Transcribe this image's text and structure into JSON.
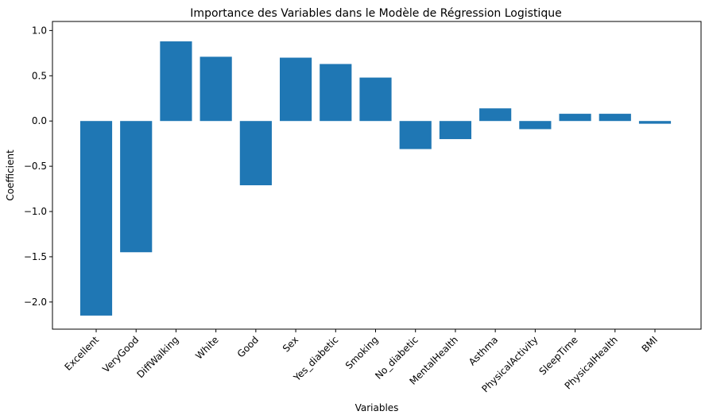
{
  "chart_data": {
    "type": "bar",
    "title": "Importance des Variables dans le Modèle de Régression Logistique",
    "xlabel": "Variables",
    "ylabel": "Coefficient",
    "categories": [
      "Excellent",
      "VeryGood",
      "DiffWalking",
      "White",
      "Good",
      "Sex",
      "Yes_diabetic",
      "Smoking",
      "No_diabetic",
      "MentalHealth",
      "Asthma",
      "PhysicalActivity",
      "SleepTime",
      "PhysicalHealth",
      "BMI"
    ],
    "values": [
      -2.15,
      -1.45,
      0.88,
      0.71,
      -0.71,
      0.7,
      0.63,
      0.48,
      -0.31,
      -0.2,
      0.14,
      -0.09,
      0.08,
      0.08,
      -0.03
    ],
    "yticks": [
      1.0,
      0.5,
      0.0,
      -0.5,
      -1.0,
      -1.5,
      -2.0
    ],
    "ytick_labels": [
      "1.0",
      "0.5",
      "0.0",
      "−0.5",
      "−1.0",
      "−1.5",
      "−2.0"
    ],
    "ylim": [
      -2.3,
      1.1
    ],
    "bar_color": "#1f77b4",
    "grid": false,
    "legend": false
  }
}
